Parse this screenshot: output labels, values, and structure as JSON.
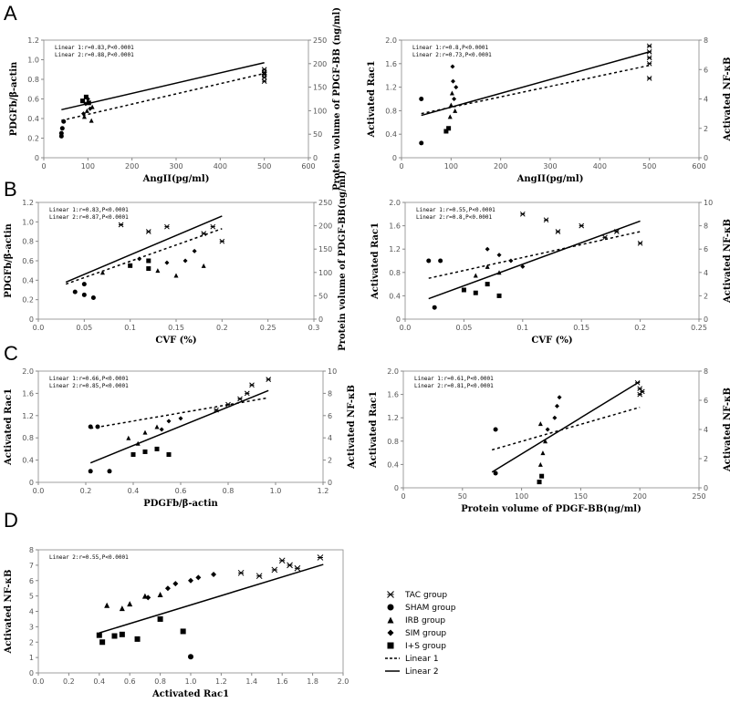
{
  "panels": [
    {
      "id": "A"
    },
    {
      "id": "B"
    },
    {
      "id": "C"
    },
    {
      "id": "D"
    }
  ],
  "legend": {
    "items": [
      {
        "label": "TAC group",
        "marker": "star-x"
      },
      {
        "label": "SHAM group",
        "marker": "circle"
      },
      {
        "label": "IRB group",
        "marker": "triangle"
      },
      {
        "label": "SIM group",
        "marker": "diamond"
      },
      {
        "label": "I+S group",
        "marker": "square"
      },
      {
        "label": "Linear 1",
        "marker": "dashed-line"
      },
      {
        "label": "Linear 2",
        "marker": "solid-line"
      }
    ]
  },
  "chart_data": [
    {
      "id": "A1",
      "type": "scatter",
      "xlabel": "AngII(pg/ml)",
      "ylabel": "PDGFb/β-actin",
      "y2label": "Protein volume of PDGF-BB (ng/ml)",
      "xlim": [
        0,
        600
      ],
      "ylim": [
        0,
        1.2
      ],
      "y2lim": [
        0,
        250
      ],
      "xticks": [
        "0",
        "100",
        "200",
        "300",
        "400",
        "500",
        "600"
      ],
      "yticks": [
        "0",
        "0.2",
        "0.4",
        "0.6",
        "0.8",
        "1.0",
        "1.2"
      ],
      "y2ticks": [
        "0",
        "50",
        "100",
        "150",
        "200",
        "250"
      ],
      "stats": [
        "Linear 1:r=0.83,P<0.0001",
        "Linear 2:r=0.88,P<0.0001"
      ],
      "line2": [
        [
          40,
          0.49
        ],
        [
          500,
          0.97
        ]
      ],
      "line1": [
        [
          40,
          0.38
        ],
        [
          500,
          0.86
        ]
      ],
      "points": [
        [
          40,
          0.25,
          "circle"
        ],
        [
          42,
          0.3,
          "circle"
        ],
        [
          45,
          0.37,
          "circle"
        ],
        [
          40,
          0.22,
          "circle"
        ],
        [
          90,
          0.45,
          "diamond"
        ],
        [
          95,
          0.55,
          "diamond"
        ],
        [
          100,
          0.6,
          "diamond"
        ],
        [
          105,
          0.5,
          "diamond"
        ],
        [
          92,
          0.42,
          "triangle"
        ],
        [
          98,
          0.48,
          "triangle"
        ],
        [
          108,
          0.38,
          "triangle"
        ],
        [
          110,
          0.52,
          "triangle"
        ],
        [
          88,
          0.58,
          "square"
        ],
        [
          96,
          0.62,
          "square"
        ],
        [
          102,
          0.56,
          "square"
        ],
        [
          500,
          0.82,
          "star-x"
        ],
        [
          500,
          0.87,
          "star-x"
        ],
        [
          500,
          0.9,
          "star-x"
        ],
        [
          500,
          0.85,
          "star-x"
        ],
        [
          500,
          0.78,
          "star-x"
        ]
      ]
    },
    {
      "id": "A2",
      "type": "scatter",
      "xlabel": "AngII(pg/ml)",
      "ylabel": "Activated Rac1",
      "y2label": "Activated NF-κB",
      "xlim": [
        0,
        600
      ],
      "ylim": [
        0,
        2.0
      ],
      "y2lim": [
        0,
        8
      ],
      "xticks": [
        "0",
        "100",
        "200",
        "300",
        "400",
        "500",
        "600"
      ],
      "yticks": [
        "0",
        "0.4",
        "0.8",
        "1.2",
        "1.6",
        "2.0"
      ],
      "y2ticks": [
        "0",
        "2",
        "4",
        "6",
        "8"
      ],
      "stats": [
        "Linear 1:r=0.8,P<0.0001",
        "Linear 2:r=0.73,P<0.0001"
      ],
      "line2": [
        [
          40,
          0.72
        ],
        [
          500,
          1.8
        ]
      ],
      "line1": [
        [
          40,
          0.75
        ],
        [
          500,
          1.57
        ]
      ],
      "points": [
        [
          40,
          1.0,
          "circle"
        ],
        [
          40,
          0.25,
          "circle"
        ],
        [
          90,
          0.45,
          "square"
        ],
        [
          95,
          0.5,
          "square"
        ],
        [
          98,
          0.7,
          "triangle"
        ],
        [
          100,
          0.9,
          "triangle"
        ],
        [
          102,
          1.1,
          "triangle"
        ],
        [
          104,
          1.3,
          "diamond"
        ],
        [
          103,
          1.55,
          "diamond"
        ],
        [
          106,
          1.0,
          "diamond"
        ],
        [
          108,
          0.8,
          "triangle"
        ],
        [
          110,
          1.2,
          "diamond"
        ],
        [
          500,
          1.6,
          "star-x"
        ],
        [
          500,
          1.7,
          "star-x"
        ],
        [
          500,
          1.8,
          "star-x"
        ],
        [
          500,
          1.35,
          "star-x"
        ],
        [
          500,
          1.9,
          "star-x"
        ]
      ]
    },
    {
      "id": "B1",
      "type": "scatter",
      "xlabel": "CVF (%)",
      "ylabel": "PDGFb/β-actin",
      "y2label": "Protein volume of PDGF-BB(ng/ml)",
      "xlim": [
        0,
        0.3
      ],
      "ylim": [
        0,
        1.2
      ],
      "y2lim": [
        0,
        250
      ],
      "xticks": [
        "0.0",
        "0.05",
        "0.1",
        "0.15",
        "0.2",
        "0.25",
        "0.3"
      ],
      "yticks": [
        "0",
        "0.2",
        "0.4",
        "0.6",
        "0.8",
        "1.0",
        "1.2"
      ],
      "y2ticks": [
        "0",
        "50",
        "100",
        "150",
        "200",
        "250"
      ],
      "stats": [
        "Linear 1:r=0.83,P<0.0001",
        "Linear 2:r=0.87,P<0.0001"
      ],
      "line2": [
        [
          0.03,
          0.38
        ],
        [
          0.2,
          1.06
        ]
      ],
      "line1": [
        [
          0.03,
          0.36
        ],
        [
          0.2,
          0.93
        ]
      ],
      "points": [
        [
          0.04,
          0.28,
          "circle"
        ],
        [
          0.05,
          0.25,
          "circle"
        ],
        [
          0.06,
          0.22,
          "circle"
        ],
        [
          0.05,
          0.36,
          "circle"
        ],
        [
          0.07,
          0.48,
          "triangle"
        ],
        [
          0.1,
          0.55,
          "square"
        ],
        [
          0.12,
          0.6,
          "square"
        ],
        [
          0.13,
          0.5,
          "triangle"
        ],
        [
          0.15,
          0.45,
          "triangle"
        ],
        [
          0.11,
          0.62,
          "diamond"
        ],
        [
          0.14,
          0.58,
          "diamond"
        ],
        [
          0.16,
          0.6,
          "diamond"
        ],
        [
          0.17,
          0.7,
          "diamond"
        ],
        [
          0.12,
          0.52,
          "square"
        ],
        [
          0.18,
          0.55,
          "triangle"
        ],
        [
          0.09,
          0.97,
          "star-x"
        ],
        [
          0.12,
          0.9,
          "star-x"
        ],
        [
          0.14,
          0.95,
          "star-x"
        ],
        [
          0.19,
          0.95,
          "star-x"
        ],
        [
          0.2,
          0.8,
          "star-x"
        ],
        [
          0.18,
          0.88,
          "star-x"
        ]
      ]
    },
    {
      "id": "B2",
      "type": "scatter",
      "xlabel": "CVF (%)",
      "ylabel": "Activated Rac1",
      "y2label": "Activated NF-κB",
      "xlim": [
        0,
        0.25
      ],
      "ylim": [
        0,
        2.0
      ],
      "y2lim": [
        0,
        10
      ],
      "xticks": [
        "0.0",
        "0.05",
        "0.1",
        "0.15",
        "0.2",
        "0.25"
      ],
      "yticks": [
        "0",
        "0.4",
        "0.8",
        "1.2",
        "1.6",
        "2.0"
      ],
      "y2ticks": [
        "0",
        "2",
        "4",
        "6",
        "8",
        "10"
      ],
      "stats": [
        "Linear 1:r=0.55,P<0.0001",
        "Linear 2:r=0.8,P<0.0001"
      ],
      "line2": [
        [
          0.02,
          0.35
        ],
        [
          0.2,
          1.68
        ]
      ],
      "line1": [
        [
          0.02,
          0.7
        ],
        [
          0.2,
          1.5
        ]
      ],
      "points": [
        [
          0.02,
          1.0,
          "circle"
        ],
        [
          0.03,
          1.0,
          "circle"
        ],
        [
          0.025,
          0.2,
          "circle"
        ],
        [
          0.05,
          0.5,
          "square"
        ],
        [
          0.06,
          0.45,
          "square"
        ],
        [
          0.07,
          0.6,
          "square"
        ],
        [
          0.08,
          0.4,
          "square"
        ],
        [
          0.06,
          0.75,
          "triangle"
        ],
        [
          0.07,
          0.9,
          "triangle"
        ],
        [
          0.08,
          0.8,
          "triangle"
        ],
        [
          0.07,
          1.2,
          "diamond"
        ],
        [
          0.08,
          1.1,
          "diamond"
        ],
        [
          0.09,
          1.0,
          "diamond"
        ],
        [
          0.1,
          0.9,
          "diamond"
        ],
        [
          0.12,
          1.7,
          "star-x"
        ],
        [
          0.13,
          1.5,
          "star-x"
        ],
        [
          0.15,
          1.6,
          "star-x"
        ],
        [
          0.17,
          1.4,
          "star-x"
        ],
        [
          0.18,
          1.5,
          "star-x"
        ],
        [
          0.2,
          1.3,
          "star-x"
        ],
        [
          0.1,
          1.8,
          "star-x"
        ]
      ]
    },
    {
      "id": "C1",
      "type": "scatter",
      "xlabel": "PDGFb/β-actin",
      "ylabel": "Activated Rac1",
      "y2label": "Activated NF-κB",
      "xlim": [
        0,
        1.2
      ],
      "ylim": [
        0,
        2.0
      ],
      "y2lim": [
        0,
        10
      ],
      "xticks": [
        "0.0",
        "0.2",
        "0.4",
        "0.6",
        "0.8",
        "1.0",
        "1.2"
      ],
      "yticks": [
        "0",
        "0.4",
        "0.8",
        "1.2",
        "1.6",
        "2.0"
      ],
      "y2ticks": [
        "0",
        "2",
        "4",
        "6",
        "8",
        "10"
      ],
      "stats": [
        "Linear 1:r=0.66,P<0.0001",
        "Linear 2:r=0.85,P<0.0001"
      ],
      "line2": [
        [
          0.22,
          0.35
        ],
        [
          0.97,
          1.65
        ]
      ],
      "line1": [
        [
          0.22,
          0.97
        ],
        [
          0.97,
          1.52
        ]
      ],
      "points": [
        [
          0.22,
          1.0,
          "circle"
        ],
        [
          0.25,
          1.0,
          "circle"
        ],
        [
          0.22,
          0.2,
          "circle"
        ],
        [
          0.3,
          0.2,
          "circle"
        ],
        [
          0.4,
          0.5,
          "square"
        ],
        [
          0.45,
          0.55,
          "square"
        ],
        [
          0.5,
          0.6,
          "square"
        ],
        [
          0.55,
          0.5,
          "square"
        ],
        [
          0.38,
          0.8,
          "triangle"
        ],
        [
          0.45,
          0.9,
          "triangle"
        ],
        [
          0.5,
          1.0,
          "triangle"
        ],
        [
          0.55,
          1.1,
          "diamond"
        ],
        [
          0.6,
          1.15,
          "diamond"
        ],
        [
          0.52,
          0.95,
          "diamond"
        ],
        [
          0.42,
          0.7,
          "triangle"
        ],
        [
          0.75,
          1.3,
          "star-x"
        ],
        [
          0.8,
          1.4,
          "star-x"
        ],
        [
          0.85,
          1.5,
          "star-x"
        ],
        [
          0.88,
          1.6,
          "star-x"
        ],
        [
          0.9,
          1.75,
          "star-x"
        ],
        [
          0.97,
          1.85,
          "star-x"
        ]
      ]
    },
    {
      "id": "C2",
      "type": "scatter",
      "xlabel": "Protein volume of PDGF-BB(ng/ml)",
      "ylabel": "Activated Rac1",
      "y2label": "Activated NF-κB",
      "xlim": [
        0,
        250
      ],
      "ylim": [
        0,
        2.0
      ],
      "y2lim": [
        0,
        8
      ],
      "xticks": [
        "0",
        "50",
        "100",
        "150",
        "200",
        "250"
      ],
      "yticks": [
        "0",
        "0.4",
        "0.8",
        "1.2",
        "1.6",
        "2.0"
      ],
      "y2ticks": [
        "0",
        "2",
        "4",
        "6",
        "8"
      ],
      "stats": [
        "Linear 1:r=0.61,P<0.0001",
        "Linear 2:r=0.81,P<0.0001"
      ],
      "line2": [
        [
          75,
          0.27
        ],
        [
          200,
          1.82
        ]
      ],
      "line1": [
        [
          75,
          0.65
        ],
        [
          200,
          1.38
        ]
      ],
      "points": [
        [
          78,
          1.0,
          "circle"
        ],
        [
          78,
          0.25,
          "circle"
        ],
        [
          115,
          0.1,
          "square"
        ],
        [
          117,
          0.2,
          "square"
        ],
        [
          116,
          0.4,
          "triangle"
        ],
        [
          118,
          0.6,
          "triangle"
        ],
        [
          120,
          0.8,
          "triangle"
        ],
        [
          116,
          1.1,
          "triangle"
        ],
        [
          122,
          1.0,
          "diamond"
        ],
        [
          130,
          1.4,
          "diamond"
        ],
        [
          132,
          1.55,
          "diamond"
        ],
        [
          128,
          1.2,
          "diamond"
        ],
        [
          200,
          1.6,
          "star-x"
        ],
        [
          200,
          1.7,
          "star-x"
        ],
        [
          198,
          1.8,
          "star-x"
        ],
        [
          202,
          1.65,
          "star-x"
        ]
      ]
    },
    {
      "id": "D",
      "type": "scatter",
      "xlabel": "Activated Rac1",
      "ylabel": "Activated NF-κB",
      "xlim": [
        0,
        2.0
      ],
      "ylim": [
        0,
        8
      ],
      "xticks": [
        "0.0",
        "0.2",
        "0.4",
        "0.6",
        "0.8",
        "1.0",
        "1.2",
        "1.4",
        "1.6",
        "1.8",
        "2.0"
      ],
      "yticks": [
        "0",
        "1",
        "2",
        "3",
        "4",
        "5",
        "6",
        "7",
        "8"
      ],
      "stats": [
        "Linear 2:r=0.55,P<0.0001"
      ],
      "line2": [
        [
          0.4,
          2.6
        ],
        [
          1.87,
          7.05
        ]
      ],
      "points": [
        [
          0.4,
          2.45,
          "square"
        ],
        [
          0.42,
          2.0,
          "square"
        ],
        [
          0.5,
          2.4,
          "square"
        ],
        [
          0.55,
          2.5,
          "square"
        ],
        [
          0.65,
          2.2,
          "square"
        ],
        [
          0.8,
          3.5,
          "square"
        ],
        [
          0.95,
          2.7,
          "square"
        ],
        [
          1.0,
          1.05,
          "circle"
        ],
        [
          0.45,
          4.4,
          "triangle"
        ],
        [
          0.55,
          4.2,
          "triangle"
        ],
        [
          0.6,
          4.5,
          "triangle"
        ],
        [
          0.7,
          5.0,
          "triangle"
        ],
        [
          0.8,
          5.1,
          "triangle"
        ],
        [
          0.72,
          4.9,
          "diamond"
        ],
        [
          0.85,
          5.5,
          "diamond"
        ],
        [
          0.9,
          5.8,
          "diamond"
        ],
        [
          1.0,
          6.0,
          "diamond"
        ],
        [
          1.05,
          6.2,
          "diamond"
        ],
        [
          1.15,
          6.4,
          "diamond"
        ],
        [
          1.33,
          6.5,
          "star-x"
        ],
        [
          1.45,
          6.3,
          "star-x"
        ],
        [
          1.55,
          6.7,
          "star-x"
        ],
        [
          1.6,
          7.3,
          "star-x"
        ],
        [
          1.65,
          7.0,
          "star-x"
        ],
        [
          1.7,
          6.8,
          "star-x"
        ],
        [
          1.85,
          7.5,
          "star-x"
        ]
      ]
    }
  ]
}
